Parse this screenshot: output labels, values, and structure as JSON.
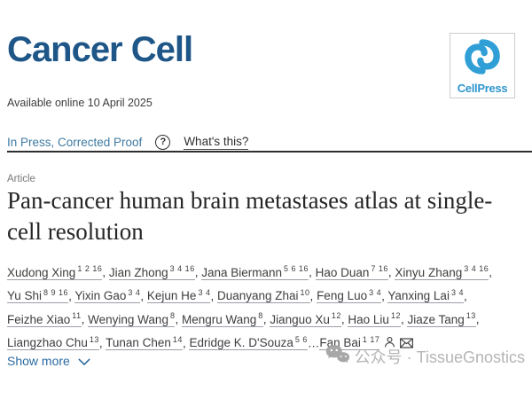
{
  "journal": {
    "name": "Cancer Cell",
    "publisher": "CellPress",
    "brand_navy": "#1e5687",
    "brand_blue": "#2f9fd6"
  },
  "meta": {
    "available_online": "Available online 10 April 2025",
    "status": "In Press, Corrected Proof",
    "whats_this": "What's this?"
  },
  "article": {
    "label": "Article",
    "title": "Pan-cancer human brain metastases atlas at single-cell resolution"
  },
  "authors": {
    "list": [
      {
        "name": "Xudong Xing",
        "sup": "1 2 16"
      },
      {
        "name": "Jian Zhong",
        "sup": "3 4 16"
      },
      {
        "name": "Jana Biermann",
        "sup": "5 6 16"
      },
      {
        "name": "Hao Duan",
        "sup": "7 16"
      },
      {
        "name": "Xinyu Zhang",
        "sup": "3 4 16"
      },
      {
        "name": "Yu Shi",
        "sup": "8 9 16"
      },
      {
        "name": "Yixin Gao",
        "sup": "3 4"
      },
      {
        "name": "Kejun He",
        "sup": "3 4"
      },
      {
        "name": "Duanyang Zhai",
        "sup": "10"
      },
      {
        "name": "Feng Luo",
        "sup": "3 4"
      },
      {
        "name": "Yanxing Lai",
        "sup": "3 4"
      },
      {
        "name": "Feizhe Xiao",
        "sup": "11"
      },
      {
        "name": "Wenying Wang",
        "sup": "8"
      },
      {
        "name": "Mengru Wang",
        "sup": "8"
      },
      {
        "name": "Jianguo Xu",
        "sup": "12"
      },
      {
        "name": "Hao Liu",
        "sup": "12"
      },
      {
        "name": "Jiaze Tang",
        "sup": "13"
      },
      {
        "name": "Liangzhao Chu",
        "sup": "13"
      },
      {
        "name": "Tunan Chen",
        "sup": "14"
      },
      {
        "name": "Edridge K. D'Souza",
        "sup": "5 6"
      }
    ],
    "ellipsis": "…",
    "corresponding": {
      "name": "Fan Bai",
      "sup": "1 17"
    }
  },
  "show_more": {
    "label": "Show more"
  },
  "watermark": {
    "text": "公众号 · TissueGnostics"
  },
  "icons": {
    "question_mark": "?",
    "person": "person-outline",
    "envelope": "envelope",
    "chevron_down": "chevron-down",
    "wechat": "wechat-bubbles",
    "cellpress_swirl": "cellpress-vortex"
  }
}
